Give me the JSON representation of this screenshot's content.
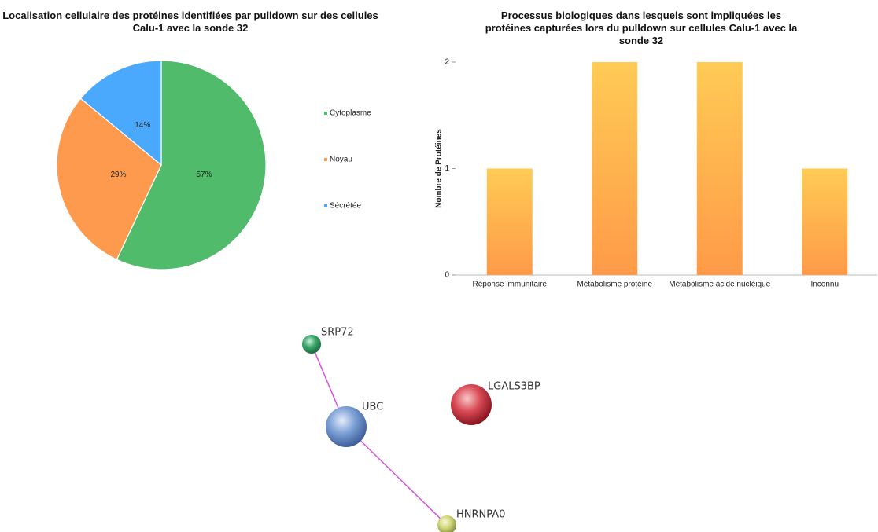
{
  "chart_data": [
    {
      "type": "pie",
      "title": "Localisation cellulaire des protéines identifiées par pulldown sur des cellules Calu-1 avec la sonde 32",
      "categories": [
        "Cytoplasme",
        "Noyau",
        "Sécrétée"
      ],
      "values": [
        57,
        29,
        14
      ],
      "value_labels": [
        "57%",
        "29%",
        "14%"
      ],
      "colors": [
        "#4fbb6b",
        "#fd9a4e",
        "#4aa9fd"
      ],
      "legend": "right"
    },
    {
      "type": "bar",
      "title": "Processus biologiques dans lesquels sont impliquées les protéines capturées lors du pulldown sur cellules Calu-1 avec la sonde 32",
      "y_label": "Nombre de Protéines",
      "categories": [
        "Réponse immunitaire",
        "Métabolisme protéine",
        "Métabolisme acide nucléique",
        "Inconnu"
      ],
      "values": [
        1,
        2,
        2,
        1
      ],
      "colors": [
        "#ffcb55",
        "#ff9a48"
      ],
      "ylim": [
        0,
        2
      ],
      "yticks": [
        0,
        1,
        2
      ]
    }
  ],
  "network": {
    "nodes": [
      "SRP72",
      "UBC",
      "LGALS3BP",
      "HNRNPA0"
    ]
  }
}
